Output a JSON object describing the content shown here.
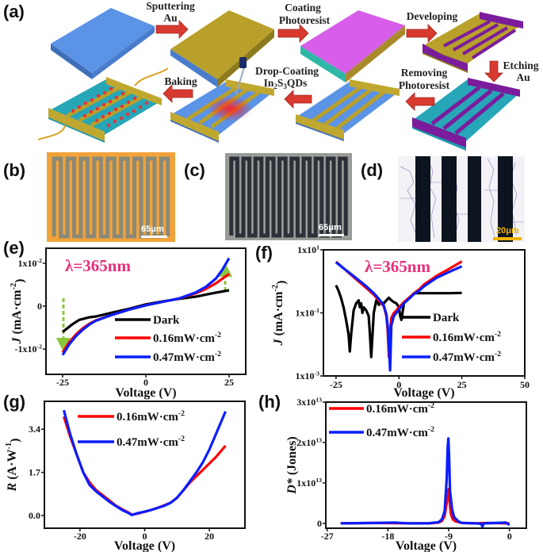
{
  "panel_labels": {
    "a": "(a)",
    "b": "(b)",
    "c": "(c)",
    "d": "(d)",
    "e": "(e)",
    "f": "(f)",
    "g": "(g)",
    "h": "(h)"
  },
  "process": {
    "sputtering": {
      "line1": "Sputtering",
      "line2": "Au"
    },
    "coating": {
      "line1": "Coating",
      "line2": "Photoresist"
    },
    "developing": {
      "line1": "Developing"
    },
    "etching": {
      "line1": "Etching",
      "line2": "Au"
    },
    "removing": {
      "line1": "Removing",
      "line2": "Photoresist"
    },
    "drop_coating": {
      "line1": "Drop-Coating",
      "in": "In",
      "sub1": "2",
      "s": "S",
      "sub2": "3",
      "qds": "QDs"
    },
    "baking": {
      "line1": "Baking"
    },
    "colors": {
      "substrate": "#5b93e6",
      "gold": "#b8a02a",
      "photoresist": "#d65ee8",
      "purple": "#7a1c9c",
      "arrow": "#d83a30",
      "qd": "#e8303a"
    }
  },
  "micrographs": {
    "b": {
      "scale_bar": "65μm",
      "background": "#f2a23a",
      "electrode": "#8a8a78"
    },
    "c": {
      "scale_bar": "65μm",
      "background": "#9a9c98",
      "electrode": "#2c3038"
    },
    "d": {
      "scale_bar": "20μm",
      "background": "#f4f2f6",
      "electrode": "#0c1420",
      "scale_color": "#f0b400"
    }
  },
  "chart_data": [
    {
      "id": "e",
      "type": "line",
      "annotation": "λ=365nm",
      "xlabel": "Voltage (V)",
      "ylabel": {
        "symbol": "J",
        "unit": " (mA·cm",
        "sup": "-2",
        "close": ")"
      },
      "xlim": [
        -30,
        30
      ],
      "ylim": [
        -0.0159,
        0.0135
      ],
      "yscale": "linear",
      "xticks": [
        {
          "value": -25,
          "label": "-25"
        },
        {
          "value": 0,
          "label": "0"
        },
        {
          "value": 25,
          "label": "25"
        }
      ],
      "yticks": [
        {
          "value": 0.01,
          "label": "1x10",
          "sup": "-2"
        },
        {
          "value": 0,
          "label": "0"
        },
        {
          "value": -0.01,
          "label": "-1x10",
          "sup": "-2"
        }
      ],
      "legend_position": "bottom-right",
      "series": [
        {
          "name": "Dark",
          "color": "#000000",
          "x": [
            -25,
            -22,
            -20,
            -17,
            -15,
            -10,
            -5,
            0,
            5,
            10,
            15,
            20,
            25
          ],
          "y": [
            -0.006,
            -0.0042,
            -0.0032,
            -0.0026,
            -0.0024,
            -0.0015,
            -0.0006,
            0.0004,
            0.0011,
            0.0017,
            0.0022,
            0.003,
            0.0037
          ]
        },
        {
          "name": "0.16mW·cm",
          "sup": "-2",
          "color": "#ff0000",
          "x": [
            -25,
            -23,
            -21,
            -19,
            -17,
            -15,
            -10,
            -5,
            0,
            5,
            10,
            15,
            18,
            21,
            25
          ],
          "y": [
            -0.0108,
            -0.0084,
            -0.0066,
            -0.0052,
            -0.0041,
            -0.0033,
            -0.002,
            -0.0008,
            0.0002,
            0.001,
            0.0018,
            0.003,
            0.004,
            0.0053,
            0.0075
          ]
        },
        {
          "name": "0.47mW·cm",
          "sup": "-2",
          "color": "#0a1eff",
          "x": [
            -25,
            -23,
            -21,
            -19,
            -17,
            -15,
            -10,
            -5,
            0,
            5,
            10,
            15,
            18,
            21,
            23,
            25
          ],
          "y": [
            -0.0114,
            -0.0089,
            -0.007,
            -0.0055,
            -0.0043,
            -0.0034,
            -0.002,
            -0.0008,
            0.0002,
            0.001,
            0.0018,
            0.0032,
            0.0045,
            0.0064,
            0.0085,
            0.0112
          ]
        }
      ]
    },
    {
      "id": "f",
      "type": "line",
      "annotation": "λ=365nm",
      "xlabel": "Voltage (V)",
      "ylabel": {
        "symbol": "J",
        "unit": " (mA·cm",
        "sup": "-2",
        "close": ")"
      },
      "xlim": [
        -30,
        50
      ],
      "ylim": [
        0.001,
        10
      ],
      "yscale": "log",
      "xticks": [
        {
          "value": -25,
          "label": "-25"
        },
        {
          "value": 0,
          "label": "0"
        },
        {
          "value": 25,
          "label": "25"
        },
        {
          "value": 50,
          "label": "50"
        }
      ],
      "yticks": [
        {
          "value": 10,
          "label": "1x10",
          "sup": "1"
        },
        {
          "value": 0.1,
          "label": "1x10",
          "sup": "-1"
        },
        {
          "value": 0.001,
          "label": "1x10",
          "sup": "-3"
        }
      ],
      "legend_position": "bottom-right",
      "series": [
        {
          "name": "Dark",
          "color": "#000000",
          "x": [
            -25,
            -24,
            -23,
            -22,
            -21,
            -20,
            -19.5,
            -19,
            -18,
            -17,
            -16,
            -15.5,
            -15,
            -14.5,
            -14,
            -13,
            -12,
            -11.5,
            -11,
            -10.5,
            -10,
            -9,
            -8,
            -7,
            -6,
            -5,
            -4,
            -3,
            -2,
            -1,
            0,
            0.5,
            1,
            2,
            3,
            4,
            5,
            6,
            8,
            10,
            15,
            20,
            25
          ],
          "y": [
            0.75,
            0.5,
            0.3,
            0.15,
            0.06,
            0.02,
            0.006,
            0.02,
            0.12,
            0.2,
            0.25,
            0.15,
            0.2,
            0.1,
            0.15,
            0.12,
            0.08,
            0.02,
            0.004,
            0.02,
            0.1,
            0.25,
            0.18,
            0.22,
            0.2,
            0.25,
            0.3,
            0.25,
            0.22,
            0.2,
            0.15,
            0.08,
            0.06,
            0.2,
            0.25,
            0.3,
            0.35,
            0.42,
            0.42,
            0.42,
            0.42,
            0.42,
            0.43
          ]
        },
        {
          "name": "0.16mW·cm",
          "sup": "-2",
          "color": "#ff0000",
          "x": [
            -25,
            -22,
            -19,
            -16,
            -13,
            -10,
            -8,
            -6,
            -5,
            -4.5,
            -4,
            -3.5,
            -3,
            -2,
            -1,
            0,
            2,
            4,
            6,
            8,
            10,
            15,
            20,
            25
          ],
          "y": [
            4.2,
            2.6,
            1.6,
            1.0,
            0.62,
            0.38,
            0.25,
            0.16,
            0.08,
            0.03,
            0.004,
            0.03,
            0.07,
            0.1,
            0.12,
            0.15,
            0.22,
            0.3,
            0.42,
            0.55,
            0.8,
            1.5,
            2.5,
            4.3
          ]
        },
        {
          "name": "0.47mW·cm",
          "sup": "-2",
          "color": "#0a1eff",
          "x": [
            -25,
            -22,
            -19,
            -16,
            -13,
            -10,
            -8,
            -6,
            -5,
            -4.5,
            -4,
            -3.5,
            -3,
            -2,
            -1,
            0,
            2,
            4,
            6,
            8,
            10,
            15,
            20,
            25
          ],
          "y": [
            4.0,
            2.6,
            1.7,
            1.1,
            0.7,
            0.42,
            0.28,
            0.17,
            0.09,
            0.04,
            0.01,
            0.0015,
            0.04,
            0.08,
            0.1,
            0.13,
            0.2,
            0.28,
            0.4,
            0.5,
            0.7,
            1.3,
            2.0,
            3.0
          ]
        }
      ]
    },
    {
      "id": "g",
      "type": "line",
      "xlabel": "Voltage (V)",
      "ylabel": {
        "symbol": "R",
        "unit": " (A·W",
        "sup": "-1",
        "close": ")"
      },
      "xlim": [
        -31,
        31
      ],
      "ylim": [
        -0.5,
        4.5
      ],
      "yscale": "linear",
      "xticks": [
        {
          "value": -20,
          "label": "-20"
        },
        {
          "value": 0,
          "label": "0"
        },
        {
          "value": 20,
          "label": "20"
        }
      ],
      "yticks": [
        {
          "value": 3.4,
          "label": "3.4"
        },
        {
          "value": 1.7,
          "label": "1.7"
        },
        {
          "value": 0,
          "label": "0.0"
        }
      ],
      "legend_position": "top-center",
      "series": [
        {
          "name": "0.16mW·cm",
          "sup": "-2",
          "color": "#ff0000",
          "x": [
            -25,
            -23,
            -21,
            -19,
            -17,
            -15,
            -13,
            -11,
            -9,
            -7,
            -5,
            -4,
            -2,
            0,
            2,
            4,
            6,
            8,
            10,
            12,
            14,
            16,
            18,
            20,
            22,
            25
          ],
          "y": [
            3.9,
            3.1,
            2.4,
            1.7,
            1.3,
            1.0,
            0.8,
            0.6,
            0.4,
            0.25,
            0.12,
            0.03,
            0.08,
            0.15,
            0.22,
            0.3,
            0.4,
            0.5,
            0.7,
            1.0,
            1.3,
            1.55,
            1.8,
            2.05,
            2.3,
            2.75
          ]
        },
        {
          "name": "0.47mW·cm",
          "sup": "-2",
          "color": "#0a1eff",
          "x": [
            -25,
            -23,
            -21,
            -19,
            -17,
            -15,
            -13,
            -11,
            -9,
            -7,
            -5,
            -4,
            -2,
            0,
            2,
            4,
            6,
            8,
            10,
            12,
            14,
            16,
            18,
            20,
            22,
            25
          ],
          "y": [
            4.15,
            3.2,
            2.4,
            1.7,
            1.2,
            0.95,
            0.75,
            0.55,
            0.38,
            0.22,
            0.1,
            0.02,
            0.1,
            0.15,
            0.22,
            0.3,
            0.38,
            0.5,
            0.7,
            1.0,
            1.35,
            1.7,
            2.1,
            2.6,
            3.2,
            4.1
          ]
        }
      ]
    },
    {
      "id": "h",
      "type": "line",
      "xlabel": "Voltage (V)",
      "ylabel": {
        "symbol": "D*",
        "unit": " (Jones)"
      },
      "xlim": [
        -27.2,
        2.5
      ],
      "ylim": [
        -1200000000000.0,
        30000000000000.0
      ],
      "yscale": "linear",
      "xticks": [
        {
          "value": -27,
          "label": "-27"
        },
        {
          "value": -18,
          "label": "-18"
        },
        {
          "value": -9,
          "label": "-9"
        },
        {
          "value": 0,
          "label": "0"
        }
      ],
      "yticks": [
        {
          "value": 30000000000000.0,
          "label": "3x10",
          "sup": "13"
        },
        {
          "value": 20000000000000.0,
          "label": "2x10",
          "sup": "13"
        },
        {
          "value": 10000000000000.0,
          "label": "1x10",
          "sup": "13"
        },
        {
          "value": 0,
          "label": "0"
        }
      ],
      "legend_position": "top-left",
      "series": [
        {
          "name": "0.16mW·cm",
          "sup": "-2",
          "color": "#ff0000",
          "x": [
            -25,
            -20,
            -15,
            -12,
            -10.5,
            -10,
            -9.6,
            -9.3,
            -9.1,
            -9,
            -8.9,
            -8.7,
            -8.4,
            -8,
            -7,
            -5,
            -3,
            0
          ],
          "y": [
            0,
            100000000000.0,
            0,
            0,
            200000000000.0,
            600000000000.0,
            1800000000000.0,
            5000000000000.0,
            8200000000000.0,
            8500000000000.0,
            6000000000000.0,
            2500000000000.0,
            1000000000000.0,
            500000000000.0,
            100000000000.0,
            0,
            100000000000.0,
            0
          ]
        },
        {
          "name": "0.47mW·cm",
          "sup": "-2",
          "color": "#0a1eff",
          "x": [
            -25,
            -20,
            -17,
            -15,
            -12,
            -10.5,
            -10,
            -9.6,
            -9.3,
            -9.15,
            -9.05,
            -8.95,
            -8.8,
            -8.5,
            -8.2,
            -7.5,
            -7,
            -5,
            -4.2,
            -4,
            -3.8,
            -2,
            -0.5,
            0
          ],
          "y": [
            0,
            100000000000.0,
            200000000000.0,
            0,
            0,
            300000000000.0,
            1000000000000.0,
            3000000000000.0,
            11000000000000.0,
            19000000000000.0,
            21000000000000.0,
            17000000000000.0,
            8000000000000.0,
            3500000000000.0,
            1500000000000.0,
            400000000000.0,
            100000000000.0,
            0,
            -100000000000.0,
            -800000000000.0,
            0,
            100000000000.0,
            200000000000.0,
            -400000000000.0
          ]
        }
      ]
    }
  ]
}
